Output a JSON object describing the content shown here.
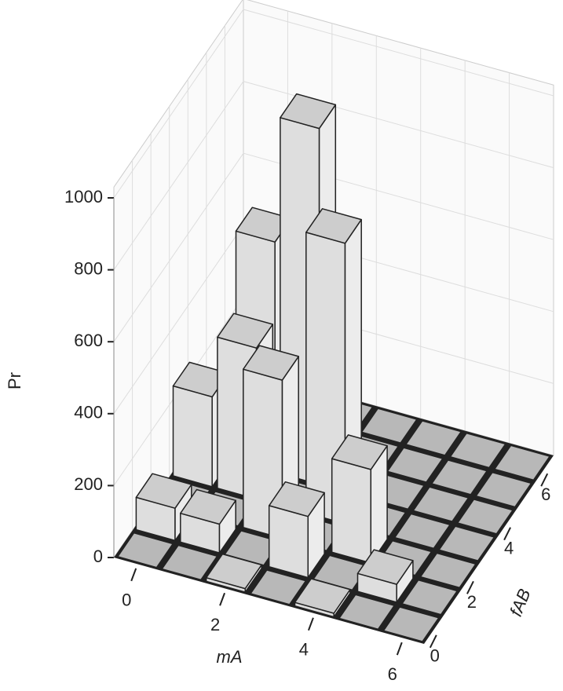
{
  "chart_data": {
    "type": "bar3d",
    "xlabel": "mA",
    "ylabel": "fAB",
    "zlabel": "Pr",
    "x": [
      0,
      1,
      2,
      3,
      4,
      5,
      6
    ],
    "y": [
      0,
      1,
      2,
      3,
      4,
      5,
      6
    ],
    "values": [
      [
        0,
        90,
        0,
        250,
        0,
        0,
        0
      ],
      [
        0,
        80,
        0,
        420,
        640,
        0,
        0
      ],
      [
        10,
        0,
        440,
        0,
        990,
        0,
        0
      ],
      [
        0,
        170,
        0,
        780,
        0,
        0,
        0
      ],
      [
        10,
        0,
        260,
        0,
        0,
        0,
        0
      ],
      [
        0,
        50,
        0,
        0,
        0,
        0,
        0
      ],
      [
        0,
        0,
        0,
        0,
        0,
        0,
        0
      ]
    ],
    "xlim": [
      -0.5,
      6.5
    ],
    "ylim": [
      -0.5,
      6.5
    ],
    "zlim": [
      0,
      1000
    ],
    "xticks": [
      0,
      2,
      4,
      6
    ],
    "yticks": [
      0,
      2,
      4,
      6
    ],
    "zticks": [
      0,
      200,
      400,
      600,
      800,
      1000
    ],
    "color": "#cdcdcd"
  }
}
